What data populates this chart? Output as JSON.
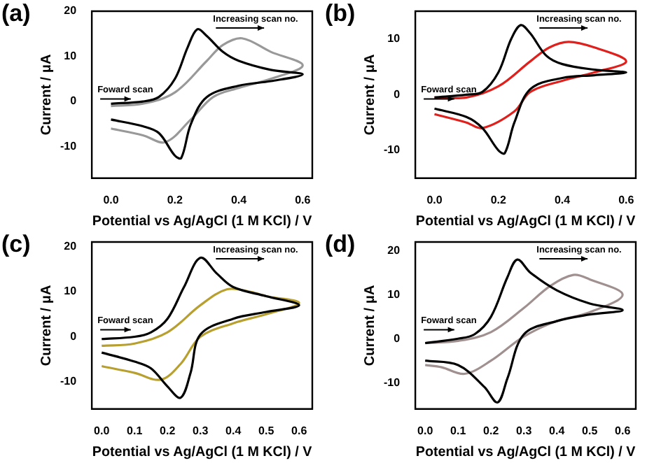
{
  "chart_data": [
    {
      "type": "line",
      "title": "(a)",
      "xlabel": "Potential vs Ag/AgCl (1 M KCl) / V",
      "ylabel": "Current / μA",
      "xlim": [
        -0.06,
        0.63
      ],
      "xticks": [
        {
          "value": 0,
          "label": "0.0"
        },
        {
          "value": 0.2,
          "label": "0.2"
        },
        {
          "value": 0.4,
          "label": "0.4"
        },
        {
          "value": 0.6,
          "label": "0.6"
        }
      ],
      "ylim": [
        -17,
        20
      ],
      "yticks": [
        -10,
        0,
        10,
        20
      ],
      "grid": false,
      "legend": false,
      "annotations": [
        "Increasing scan no.",
        "Foward scan"
      ],
      "series": [
        {
          "color": "#000000",
          "x": [
            0,
            0.1,
            0.15,
            0.2,
            0.24,
            0.27,
            0.3,
            0.35,
            0.4,
            0.5,
            0.6,
            0.5,
            0.4,
            0.3,
            0.25,
            0.22,
            0.2,
            0.15,
            0.1,
            0
          ],
          "values": [
            -0.5,
            0,
            1,
            5,
            12,
            16,
            14.5,
            11,
            9,
            7,
            6,
            4.5,
            3.5,
            1,
            -5,
            -12.5,
            -12,
            -7,
            -5.5,
            -4
          ]
        },
        {
          "color": "#999999",
          "x": [
            0,
            0.1,
            0.2,
            0.3,
            0.35,
            0.41,
            0.5,
            0.6,
            0.5,
            0.4,
            0.32,
            0.25,
            0.17,
            0.1,
            0
          ],
          "values": [
            -1,
            -0.5,
            2,
            9,
            12.5,
            14,
            11,
            8,
            5,
            3,
            1,
            -4,
            -9,
            -7.5,
            -6
          ]
        }
      ]
    },
    {
      "type": "line",
      "title": "(b)",
      "xlabel": "Potential vs Ag/AgCl (1 M KCl) / V",
      "ylabel": "Current / μA",
      "xlim": [
        -0.06,
        0.63
      ],
      "xticks": [
        {
          "value": 0,
          "label": "0.0"
        },
        {
          "value": 0.2,
          "label": "0.2"
        },
        {
          "value": 0.4,
          "label": "0.4"
        },
        {
          "value": 0.6,
          "label": "0.6"
        }
      ],
      "ylim": [
        -15,
        15
      ],
      "yticks": [
        -10,
        0,
        10
      ],
      "grid": false,
      "legend": false,
      "annotations": [
        "Increasing scan no.",
        "Foward scan"
      ],
      "series": [
        {
          "color": "#000000",
          "x": [
            0,
            0.1,
            0.15,
            0.2,
            0.24,
            0.27,
            0.3,
            0.35,
            0.4,
            0.5,
            0.6,
            0.5,
            0.4,
            0.3,
            0.25,
            0.22,
            0.2,
            0.15,
            0.1,
            0
          ],
          "values": [
            -0.5,
            0,
            0.5,
            4,
            10,
            12.5,
            11,
            7,
            5.5,
            4.5,
            4,
            3.5,
            3,
            1,
            -5,
            -10.5,
            -10,
            -6,
            -4,
            -2.5
          ]
        },
        {
          "color": "#e0201c",
          "x": [
            0,
            0.1,
            0.2,
            0.3,
            0.36,
            0.42,
            0.5,
            0.6,
            0.5,
            0.4,
            0.3,
            0.25,
            0.15,
            0.1,
            0
          ],
          "values": [
            -0.5,
            -0.5,
            1.5,
            6,
            8.5,
            9.5,
            8.5,
            6,
            4,
            2.5,
            0.5,
            -3,
            -6,
            -5,
            -3.5
          ]
        }
      ]
    },
    {
      "type": "line",
      "title": "(c)",
      "xlabel": "Potential vs Ag/AgCl (1 M KCl) / V",
      "ylabel": "Current / μA",
      "xlim": [
        -0.03,
        0.64
      ],
      "xticks": [
        {
          "value": 0,
          "label": "0.0"
        },
        0.1,
        0.2,
        0.3,
        0.4,
        0.5,
        0.6
      ],
      "ylim": [
        -16,
        21
      ],
      "yticks": [
        -10,
        0,
        10,
        20
      ],
      "grid": false,
      "legend": false,
      "annotations": [
        "Increasing scan no.",
        "Foward scan"
      ],
      "series": [
        {
          "color": "#000000",
          "x": [
            0,
            0.1,
            0.15,
            0.2,
            0.25,
            0.3,
            0.35,
            0.4,
            0.5,
            0.6,
            0.5,
            0.4,
            0.3,
            0.27,
            0.24,
            0.2,
            0.15,
            0.1,
            0
          ],
          "values": [
            -0.5,
            0,
            1,
            4,
            11,
            17.5,
            14,
            11,
            9,
            7,
            5.5,
            4,
            0.5,
            -8,
            -13.5,
            -11,
            -7,
            -5.5,
            -3.5
          ]
        },
        {
          "color": "#b8a030",
          "x": [
            0,
            0.1,
            0.2,
            0.3,
            0.38,
            0.45,
            0.5,
            0.6,
            0.5,
            0.4,
            0.3,
            0.24,
            0.18,
            0.1,
            0
          ],
          "values": [
            -2,
            -1.5,
            1,
            7,
            10.5,
            10,
            9,
            7.5,
            5,
            3,
            0,
            -6,
            -9.5,
            -8,
            -6.5
          ]
        }
      ]
    },
    {
      "type": "line",
      "title": "(d)",
      "xlabel": "Potential vs Ag/AgCl (1 M KCl) / V",
      "ylabel": "Current / μA",
      "xlim": [
        -0.03,
        0.64
      ],
      "xticks": [
        {
          "value": 0,
          "label": "0.0"
        },
        0.1,
        0.2,
        0.3,
        0.4,
        0.5,
        0.6
      ],
      "ylim": [
        -16,
        22
      ],
      "yticks": [
        -10,
        0,
        10,
        20
      ],
      "grid": false,
      "legend": false,
      "annotations": [
        "Increasing scan no.",
        "Foward scan"
      ],
      "series": [
        {
          "color": "#000000",
          "x": [
            0,
            0.1,
            0.15,
            0.2,
            0.25,
            0.28,
            0.32,
            0.4,
            0.5,
            0.6,
            0.5,
            0.4,
            0.3,
            0.25,
            0.22,
            0.18,
            0.1,
            0
          ],
          "values": [
            -1,
            0,
            1,
            5,
            14,
            18,
            15,
            11,
            8,
            6.5,
            5.5,
            4,
            1,
            -9,
            -14.5,
            -11,
            -6,
            -5
          ]
        },
        {
          "color": "#a09090",
          "x": [
            0,
            0.1,
            0.2,
            0.3,
            0.38,
            0.45,
            0.5,
            0.6,
            0.5,
            0.4,
            0.3,
            0.2,
            0.12,
            0.05,
            0
          ],
          "values": [
            -1,
            -0.5,
            1.5,
            7,
            12,
            14.5,
            13.5,
            10,
            6,
            4,
            0.5,
            -5,
            -8,
            -6.5,
            -6
          ]
        }
      ]
    }
  ]
}
